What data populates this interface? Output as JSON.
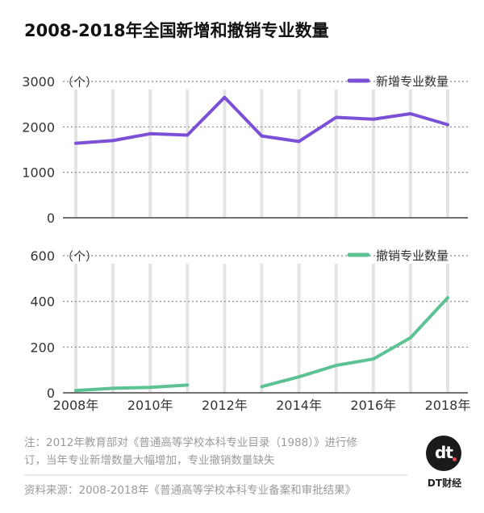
{
  "title": "2008-2018年全国新增和撤销专业数量",
  "brand": {
    "logo_text": "dt",
    "name": "DT财经"
  },
  "note": {
    "line1": "注：2012年教育部对《普通高等学校本科专业目录（1988）》进行修",
    "line2": "订，当年专业新增数量大幅增加，专业撤销数量缺失",
    "source": "资料来源：2008-2018年《普通高等学校本科专业备案和审批结果》"
  },
  "colors": {
    "purple": "#7b4fd6",
    "green": "#5cc193",
    "title": "#111111",
    "axis_text": "#333333",
    "note_text": "#9a9a9a",
    "gridline": "#888888",
    "column_band": "#e4e4e4"
  },
  "chart_data": [
    {
      "type": "line",
      "unit_label": "（个）",
      "legend": "新增专业数量",
      "legend_position": "top-right",
      "x": [
        2008,
        2009,
        2010,
        2011,
        2012,
        2013,
        2014,
        2015,
        2016,
        2017,
        2018
      ],
      "series": [
        {
          "name": "新增专业数量",
          "color": "#7b4fd6",
          "values": [
            1640,
            1700,
            1850,
            1820,
            2650,
            1800,
            1680,
            2210,
            2170,
            2290,
            2050
          ]
        }
      ],
      "ylim": [
        0,
        3000
      ],
      "yticks": [
        0,
        1000,
        2000,
        3000
      ],
      "grid": "dotted horizontal, shaded vertical bands"
    },
    {
      "type": "line",
      "unit_label": "（个）",
      "legend": "撤销专业数量",
      "legend_position": "top-right",
      "x": [
        2008,
        2009,
        2010,
        2011,
        2012,
        2013,
        2014,
        2015,
        2016,
        2017,
        2018
      ],
      "xtick_labels": [
        "2008年",
        "2010年",
        "2012年",
        "2014年",
        "2016年",
        "2018年"
      ],
      "xtick_values": [
        2008,
        2010,
        2012,
        2014,
        2016,
        2018
      ],
      "series": [
        {
          "name": "撤销专业数量",
          "color": "#5cc193",
          "values": [
            10,
            20,
            24,
            34,
            null,
            27,
            70,
            120,
            148,
            241,
            416
          ]
        }
      ],
      "ylim": [
        0,
        600
      ],
      "yticks": [
        0,
        200,
        400,
        600
      ],
      "grid": "dotted horizontal, shaded vertical bands"
    }
  ]
}
